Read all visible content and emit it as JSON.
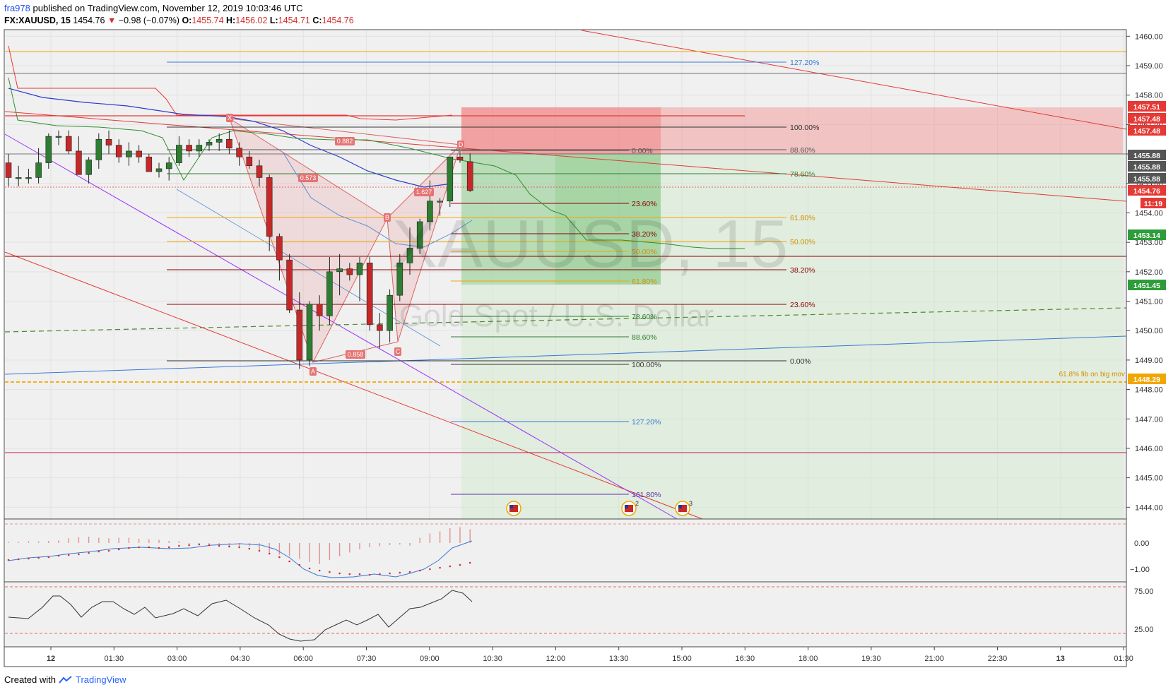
{
  "header": {
    "user": "fra978",
    "published": "published on TradingView.com, November 12, 2019 10:03:46 UTC",
    "symbol": "FX:XAUUSD, 15",
    "last": "1454.76",
    "change": "−0.98 (−0.07%)",
    "o_label": "O:",
    "o": "1455.74",
    "h_label": "H:",
    "h": "1456.02",
    "l_label": "L:",
    "l": "1454.71",
    "c_label": "C:",
    "c": "1454.76"
  },
  "footer": {
    "created_with": "Created with",
    "brand": "TradingView"
  },
  "watermark": {
    "symbol": "XAUUSD, 15",
    "name": "Gold Spot / U.S. Dollar"
  },
  "colors": {
    "up": "#2e7d32",
    "down": "#c62828",
    "grid": "#e6e6e6",
    "bg": "#f0f0f0",
    "fibRed": "#8b0000",
    "orange": "#f2a600"
  },
  "chart_data": {
    "type": "candlestick",
    "symbol": "XAUUSD",
    "interval": "15",
    "y_range": [
      1443.6,
      1460.2
    ],
    "y_ticks": [
      "1460.00",
      "1459.00",
      "1458.00",
      "1457.00",
      "1456.00",
      "1455.00",
      "1454.00",
      "1453.00",
      "1452.00",
      "1451.00",
      "1450.00",
      "1449.00",
      "1448.00",
      "1447.00",
      "1446.00",
      "1445.00",
      "1444.00"
    ],
    "x_ticks": [
      "12",
      "01:30",
      "03:00",
      "04:30",
      "06:00",
      "07:30",
      "09:00",
      "10:30",
      "12:00",
      "13:30",
      "15:00",
      "16:30",
      "18:00",
      "19:30",
      "21:00",
      "22:30",
      "13",
      "01:30"
    ],
    "price_labels": [
      {
        "value": "1457.51",
        "color": "#e53935"
      },
      {
        "value": "1457.48",
        "color": "#e53935"
      },
      {
        "value": "1457.48",
        "color": "#e53935"
      },
      {
        "value": "1455.88",
        "color": "#555555"
      },
      {
        "value": "1455.88",
        "color": "#555555"
      },
      {
        "value": "1455.88",
        "color": "#555555"
      },
      {
        "value": "1454.76",
        "color": "#e53935"
      },
      {
        "value": "11:19",
        "color": "#e53935"
      },
      {
        "value": "1453.14",
        "color": "#2e9c3a"
      },
      {
        "value": "1451.45",
        "color": "#2e9c3a"
      },
      {
        "value": "1448.29",
        "color": "#f2a600"
      }
    ],
    "candles": [
      [
        1455.7,
        1456.0,
        1454.9,
        1455.2
      ],
      [
        1455.2,
        1455.6,
        1454.9,
        1455.2
      ],
      [
        1455.2,
        1455.5,
        1455.0,
        1455.2
      ],
      [
        1455.2,
        1456.2,
        1455.0,
        1455.7
      ],
      [
        1455.7,
        1456.7,
        1455.5,
        1456.6
      ],
      [
        1456.6,
        1456.8,
        1456.3,
        1456.6
      ],
      [
        1456.6,
        1456.8,
        1456.0,
        1456.1
      ],
      [
        1456.1,
        1456.6,
        1455.3,
        1455.3
      ],
      [
        1455.3,
        1455.9,
        1455.0,
        1455.8
      ],
      [
        1455.8,
        1456.7,
        1455.5,
        1456.5
      ],
      [
        1456.5,
        1456.8,
        1456.0,
        1456.3
      ],
      [
        1456.3,
        1456.5,
        1455.7,
        1455.9
      ],
      [
        1455.9,
        1456.4,
        1455.6,
        1456.1
      ],
      [
        1456.1,
        1456.3,
        1455.7,
        1455.9
      ],
      [
        1455.9,
        1456.0,
        1455.4,
        1455.4
      ],
      [
        1455.4,
        1455.7,
        1455.2,
        1455.5
      ],
      [
        1455.5,
        1455.9,
        1455.1,
        1455.7
      ],
      [
        1455.7,
        1456.6,
        1455.6,
        1456.3
      ],
      [
        1456.3,
        1456.5,
        1455.9,
        1456.1
      ],
      [
        1456.1,
        1456.5,
        1455.9,
        1456.3
      ],
      [
        1456.3,
        1456.5,
        1456.1,
        1456.4
      ],
      [
        1456.4,
        1456.7,
        1456.1,
        1456.5
      ],
      [
        1456.5,
        1456.8,
        1456.0,
        1456.2
      ],
      [
        1456.2,
        1456.4,
        1455.6,
        1455.9
      ],
      [
        1455.9,
        1456.1,
        1455.5,
        1455.6
      ],
      [
        1455.6,
        1455.8,
        1454.9,
        1455.2
      ],
      [
        1455.2,
        1455.3,
        1452.7,
        1453.2
      ],
      [
        1453.2,
        1453.3,
        1451.7,
        1452.4
      ],
      [
        1452.4,
        1452.6,
        1450.6,
        1450.7
      ],
      [
        1450.7,
        1451.3,
        1448.7,
        1449.0
      ],
      [
        1449.0,
        1451.0,
        1448.8,
        1450.9
      ],
      [
        1450.9,
        1451.2,
        1450.0,
        1450.5
      ],
      [
        1450.5,
        1452.5,
        1450.2,
        1452.0
      ],
      [
        1452.0,
        1452.6,
        1451.2,
        1452.1
      ],
      [
        1452.1,
        1452.3,
        1451.7,
        1451.9
      ],
      [
        1451.9,
        1452.5,
        1451.0,
        1452.3
      ],
      [
        1452.3,
        1452.5,
        1450.0,
        1450.2
      ],
      [
        1450.2,
        1450.6,
        1449.4,
        1450.0
      ],
      [
        1450.0,
        1451.4,
        1449.6,
        1451.2
      ],
      [
        1451.2,
        1452.6,
        1451.0,
        1452.3
      ],
      [
        1452.3,
        1453.5,
        1451.9,
        1452.8
      ],
      [
        1452.8,
        1453.8,
        1452.6,
        1453.7
      ],
      [
        1453.7,
        1455.1,
        1453.4,
        1454.4
      ],
      [
        1454.4,
        1454.5,
        1453.9,
        1454.4
      ],
      [
        1454.4,
        1455.9,
        1454.2,
        1455.9
      ],
      [
        1455.9,
        1456.1,
        1455.7,
        1455.8
      ],
      [
        1455.74,
        1456.02,
        1454.71,
        1454.76
      ]
    ],
    "fib_labels_left": [
      "0.00%",
      "23.60%",
      "38.20%",
      "50.00%",
      "61.80%",
      "78.60%",
      "88.60%",
      "100.00%",
      "127.20%",
      "161.80%"
    ],
    "fib_labels_right": [
      "127.20%",
      "100.00%",
      "88.60%",
      "78.60%",
      "61.80%",
      "50.00%",
      "38.20%",
      "23.60%",
      "0.00%"
    ],
    "pattern_points": [
      "X",
      "A",
      "B",
      "C",
      "D"
    ],
    "pattern_ratios": [
      "0.882",
      "0.573",
      "1.627",
      "0.858"
    ],
    "annotation": "61.8% fib on big mov",
    "macd_ticks": [
      "0.00",
      "−1.00"
    ],
    "rsi_ticks": [
      "75.00",
      "25.00"
    ],
    "event_markers": [
      "2",
      "3"
    ]
  }
}
